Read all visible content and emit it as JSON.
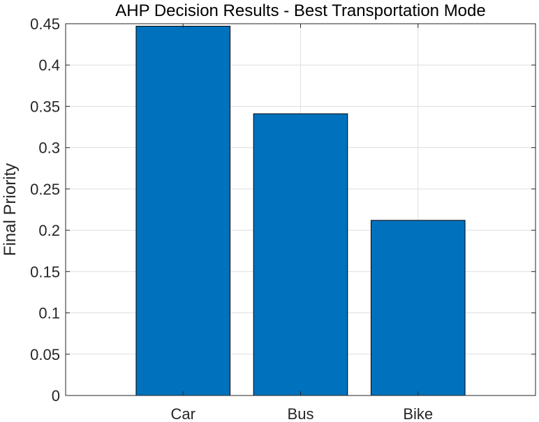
{
  "chart_data": {
    "type": "bar",
    "title": "AHP Decision Results - Best Transportation Mode",
    "xlabel": "",
    "ylabel": "Final Priority",
    "categories": [
      "Car",
      "Bus",
      "Bike"
    ],
    "values": [
      0.447,
      0.341,
      0.212
    ],
    "ylim": [
      0,
      0.45
    ],
    "yticks": [
      0,
      0.05,
      0.1,
      0.15,
      0.2,
      0.25,
      0.3,
      0.35,
      0.4,
      0.45
    ],
    "ytick_labels": [
      "0",
      "0.05",
      "0.1",
      "0.15",
      "0.2",
      "0.25",
      "0.3",
      "0.35",
      "0.4",
      "0.45"
    ],
    "xlim": [
      0,
      4
    ],
    "grid": true,
    "bar_color": "#0072BD",
    "bar_edge_color": "#000000",
    "grid_color": "#DFDFDF",
    "axis_color": "#262626"
  }
}
